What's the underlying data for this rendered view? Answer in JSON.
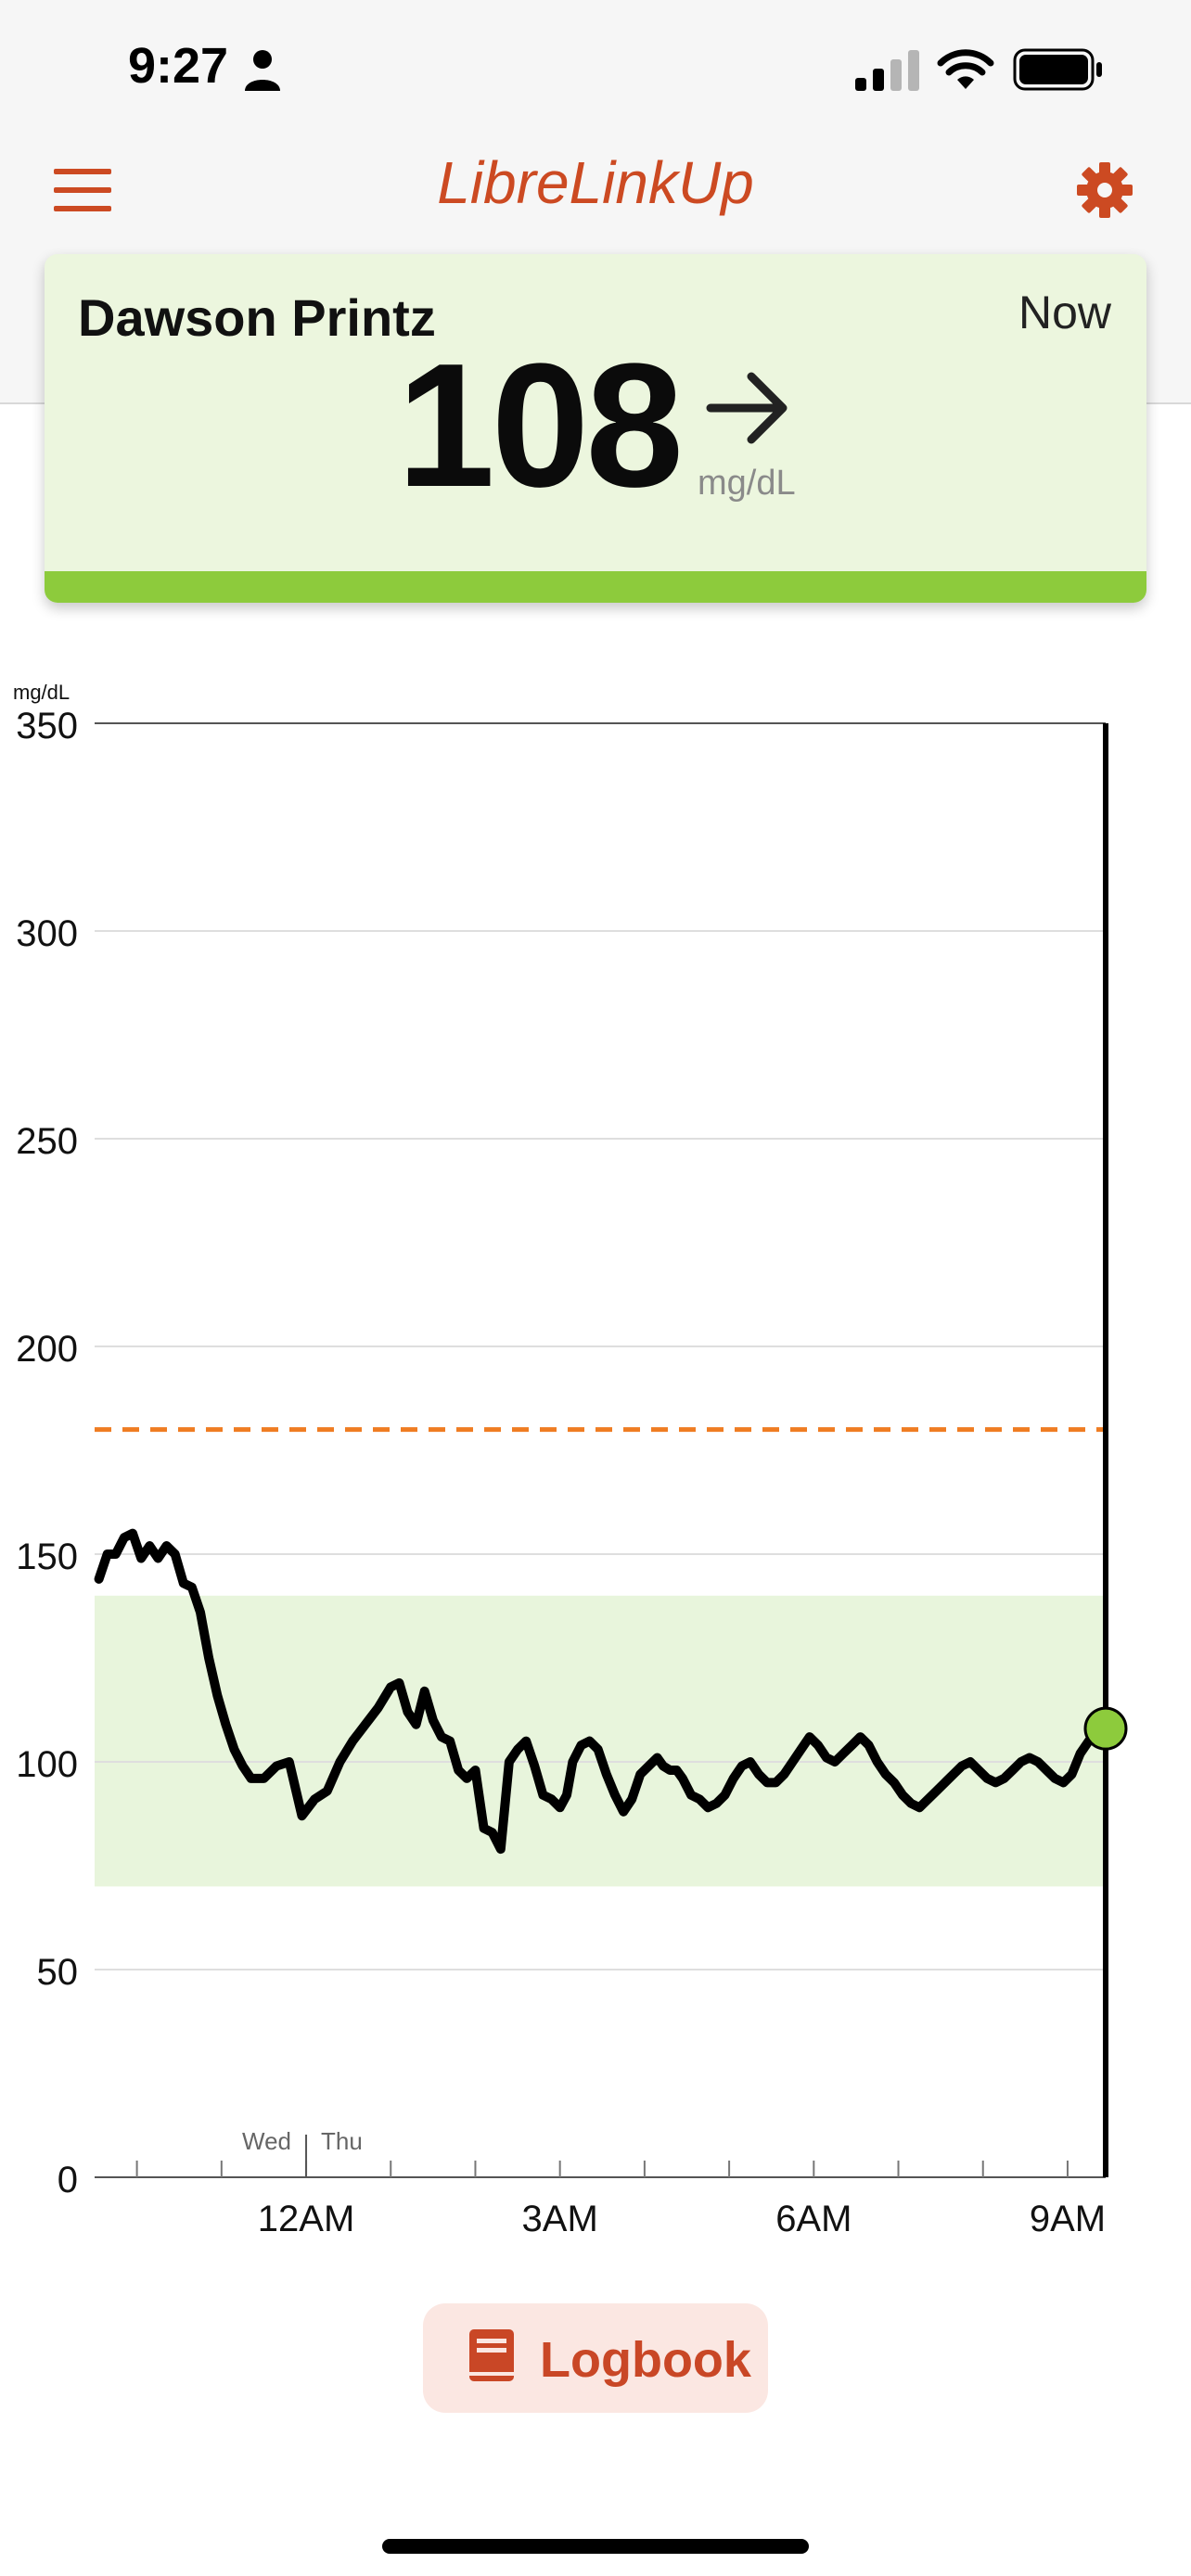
{
  "status_bar": {
    "time": "9:27",
    "icons": [
      "person-icon",
      "cellular-signal-icon",
      "wifi-icon",
      "battery-icon"
    ]
  },
  "header": {
    "title": "LibreLinkUp",
    "menu_icon": "hamburger-menu-icon",
    "settings_icon": "gear-icon"
  },
  "reading_card": {
    "name": "Dawson Printz",
    "time_label": "Now",
    "value": "108",
    "unit": "mg/dL",
    "trend_icon": "arrow-right-icon",
    "status_color": "#8dcb3c"
  },
  "chart_data": {
    "type": "line",
    "ylabel": "mg/dL",
    "ylim": [
      0,
      350
    ],
    "yticks": [
      0,
      50,
      100,
      150,
      200,
      250,
      300,
      350
    ],
    "xtick_labels": [
      "12AM",
      "3AM",
      "6AM",
      "9AM"
    ],
    "xtick_hours": [
      24,
      27,
      30,
      33
    ],
    "x_range_hours": [
      21.5,
      33.45
    ],
    "day_labels": [
      "Wed",
      "Thu"
    ],
    "day_boundary_hour": 24,
    "target_range": [
      70,
      140
    ],
    "high_threshold": 180,
    "target_range_color": "#e8f5dc",
    "high_line_color": "#ef7c22",
    "current_point": {
      "hour": 33.45,
      "value": 108,
      "color": "#8dcb3c"
    },
    "series": [
      {
        "x": [
          21.55,
          21.65,
          21.75,
          21.85,
          21.95,
          22.05,
          22.15,
          22.25,
          22.35,
          22.45,
          22.55,
          22.65,
          22.75,
          22.85,
          22.95,
          23.05,
          23.15,
          23.25,
          23.35,
          23.5,
          23.65,
          23.8,
          23.95,
          24.1,
          24.25,
          24.4,
          24.55,
          24.7,
          24.85,
          25.0,
          25.1,
          25.2,
          25.3,
          25.4,
          25.5,
          25.6,
          25.7,
          25.8,
          25.9,
          26.0,
          26.1,
          26.2,
          26.3,
          26.4,
          26.5,
          26.6,
          26.7,
          26.8,
          26.9,
          27.0,
          27.08,
          27.15,
          27.25,
          27.35,
          27.45,
          27.55,
          27.65,
          27.75,
          27.85,
          27.95,
          28.05,
          28.15,
          28.22,
          28.3,
          28.38,
          28.45,
          28.55,
          28.65,
          28.75,
          28.85,
          28.95,
          29.05,
          29.15,
          29.25,
          29.35,
          29.45,
          29.55,
          29.65,
          29.75,
          29.85,
          29.95,
          30.05,
          30.15,
          30.25,
          30.35,
          30.45,
          30.55,
          30.65,
          30.75,
          30.85,
          30.95,
          31.05,
          31.15,
          31.25,
          31.35,
          31.45,
          31.55,
          31.65,
          31.75,
          31.85,
          31.95,
          32.05,
          32.15,
          32.25,
          32.35,
          32.45,
          32.55,
          32.65,
          32.75,
          32.85,
          32.95,
          33.05,
          33.15,
          33.25,
          33.35,
          33.45
        ],
        "values": [
          144,
          150,
          150,
          154,
          155,
          149,
          152,
          149,
          152,
          150,
          143,
          142,
          136,
          125,
          116,
          109,
          103,
          99,
          96,
          96,
          99,
          100,
          87,
          91,
          93,
          100,
          105,
          109,
          113,
          118,
          119,
          112,
          109,
          117,
          110,
          106,
          105,
          98,
          96,
          98,
          84,
          83,
          79,
          100,
          103,
          105,
          99,
          92,
          91,
          89,
          92,
          100,
          104,
          105,
          103,
          97,
          92,
          88,
          91,
          97,
          99,
          101,
          99,
          98,
          98,
          96,
          92,
          91,
          89,
          90,
          92,
          96,
          99,
          100,
          97,
          95,
          95,
          97,
          100,
          103,
          106,
          104,
          101,
          100,
          102,
          104,
          106,
          104,
          100,
          97,
          95,
          92,
          90,
          89,
          91,
          93,
          95,
          97,
          99,
          100,
          98,
          96,
          95,
          96,
          98,
          100,
          101,
          100,
          98,
          96,
          95,
          97,
          102,
          105,
          107,
          108
        ]
      }
    ]
  },
  "logbook_button": {
    "label": "Logbook",
    "icon": "book-icon"
  }
}
